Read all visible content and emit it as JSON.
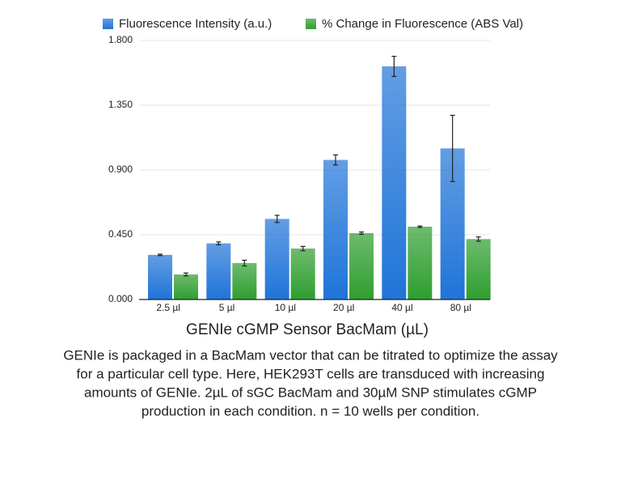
{
  "chart_data": {
    "type": "bar",
    "xlabel": "GENIe cGMP Sensor BacMam (µL)",
    "categories": [
      "2.5 µl",
      "5 µl",
      "10 µl",
      "20 µl",
      "40 µl",
      "80 µl"
    ],
    "series": [
      {
        "name": "Fluorescence Intensity (a.u.)",
        "color": "#1f74d8",
        "values": [
          0.31,
          0.39,
          0.56,
          0.97,
          1.62,
          1.05
        ],
        "errors": [
          0.005,
          0.01,
          0.025,
          0.035,
          0.07,
          0.23
        ]
      },
      {
        "name": "% Change in Fluorescence (ABS Val)",
        "color": "#2f9e2f",
        "values": [
          0.174,
          0.253,
          0.354,
          0.461,
          0.506,
          0.42
        ],
        "errors": [
          0.01,
          0.02,
          0.015,
          0.008,
          0.005,
          0.015
        ]
      }
    ],
    "ylim": [
      0,
      1.8
    ],
    "yticks": [
      {
        "value": 0,
        "label": "0.000"
      },
      {
        "value": 0.45,
        "label": "0.450"
      },
      {
        "value": 0.9,
        "label": "0.900"
      },
      {
        "value": 1.35,
        "label": "1.350"
      },
      {
        "value": 1.8,
        "label": "1.800"
      }
    ],
    "grid": true,
    "caption": [
      "GENIe is packaged in a BacMam vector that can be titrated to optimize the assay",
      "for a particular cell type. Here, HEK293T cells are transduced with increasing",
      "amounts of GENIe. 2µL of sGC BacMam and 30µM SNP stimulates cGMP",
      "production in each condition. n = 10 wells per condition."
    ]
  }
}
